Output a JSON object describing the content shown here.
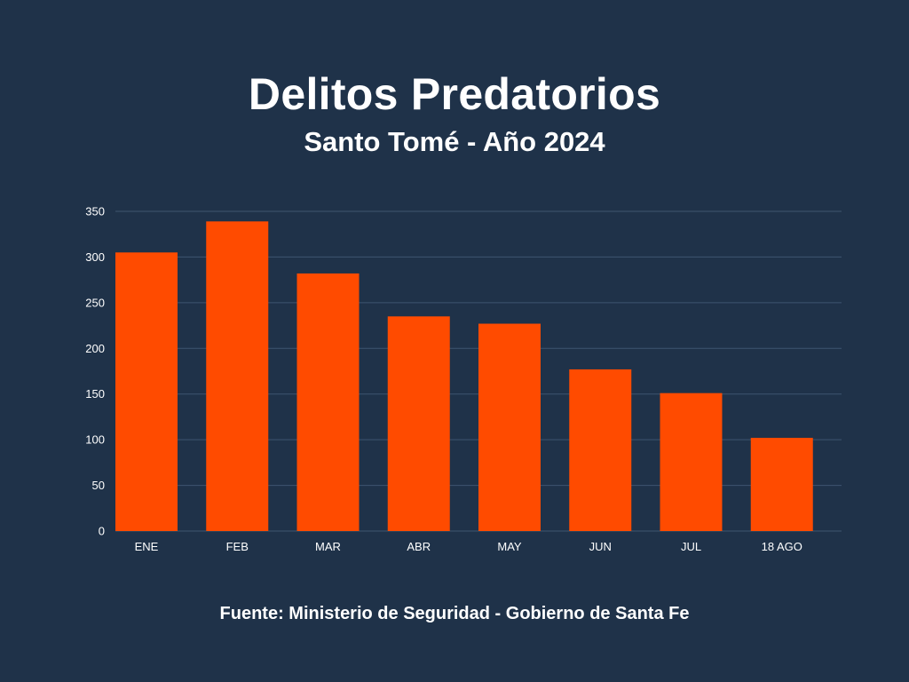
{
  "colors": {
    "background": "#1f3249",
    "bar": "#ff4b00",
    "grid": "#3f5570",
    "text": "#ffffff"
  },
  "chart_data": {
    "type": "bar",
    "title": "Delitos Predatorios",
    "subtitle": "Santo Tomé - Año 2024",
    "source": "Fuente: Ministerio de Seguridad - Gobierno de Santa Fe",
    "categories": [
      "ENE",
      "FEB",
      "MAR",
      "ABR",
      "MAY",
      "JUN",
      "JUL",
      "18 AGO"
    ],
    "values": [
      305,
      339,
      282,
      235,
      227,
      177,
      151,
      102
    ],
    "ylim": [
      0,
      350
    ],
    "yticks": [
      0,
      50,
      100,
      150,
      200,
      250,
      300,
      350
    ],
    "grid": true,
    "xlabel": "",
    "ylabel": ""
  }
}
